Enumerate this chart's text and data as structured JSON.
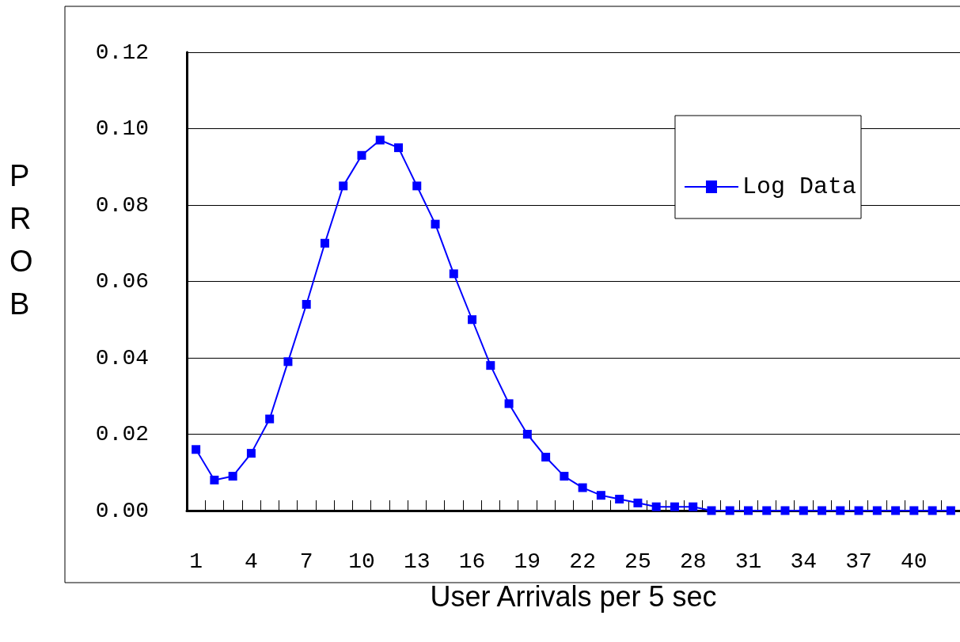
{
  "chart_data": {
    "type": "line",
    "xlabel": "User Arrivals per 5 sec",
    "ylabel": "PROB",
    "categories": [
      "1",
      null,
      null,
      "4",
      null,
      null,
      "7",
      null,
      null,
      "10",
      null,
      null,
      "13",
      null,
      null,
      "16",
      null,
      null,
      "19",
      null,
      null,
      "22",
      null,
      null,
      "25",
      null,
      null,
      "28",
      null,
      null,
      "31",
      null,
      null,
      "34",
      null,
      null,
      "37",
      null,
      null,
      "40",
      null,
      null
    ],
    "series": [
      {
        "name": "Log Data",
        "color": "#0000ff",
        "values": [
          0.016,
          0.008,
          0.009,
          0.015,
          0.024,
          0.039,
          0.054,
          0.07,
          0.085,
          0.093,
          0.097,
          0.095,
          0.085,
          0.075,
          0.062,
          0.05,
          0.038,
          0.028,
          0.02,
          0.014,
          0.009,
          0.006,
          0.004,
          0.003,
          0.002,
          0.001,
          0.001,
          0.001,
          0,
          0,
          0,
          0,
          0,
          0,
          0,
          0,
          0,
          0,
          0,
          0,
          0,
          0
        ]
      }
    ],
    "ylim": [
      0,
      0.12
    ],
    "yticks": [
      {
        "value": 0,
        "label": "0.00"
      },
      0.02,
      0.04,
      0.06,
      0.08,
      {
        "value": 0.1,
        "label": "0.10"
      },
      0.12
    ],
    "grid": "y",
    "legend": "top right",
    "marker": "square",
    "line_style": "solid"
  }
}
